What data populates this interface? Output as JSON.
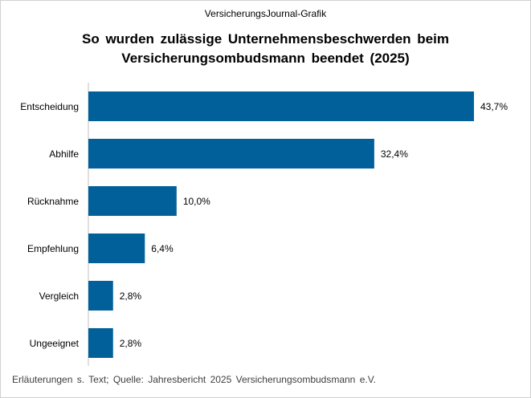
{
  "header": {
    "source_label": "VersicherungsJournal-Grafik",
    "title_line1": "So wurden zulässige Unternehmensbeschwerden beim",
    "title_line2": "Versicherungsombudsmann beendet (2025)"
  },
  "footer": {
    "note": "Erläuterungen s. Text; Quelle: Jahresbericht 2025 Versicherungsombudsmann e.V."
  },
  "chart_data": {
    "type": "bar",
    "orientation": "horizontal",
    "title": "So wurden zulässige Unternehmensbeschwerden beim Versicherungsombudsmann beendet (2025)",
    "categories": [
      "Entscheidung",
      "Abhilfe",
      "Rücknahme",
      "Empfehlung",
      "Vergleich",
      "Ungeeignet"
    ],
    "values": [
      43.7,
      32.4,
      10.0,
      6.4,
      2.8,
      2.8
    ],
    "value_labels": [
      "43,7%",
      "32,4%",
      "10,0%",
      "6,4%",
      "2,8%",
      "2,8%"
    ],
    "xlim": [
      0,
      43.7
    ],
    "grid": false,
    "legend": "none",
    "bar_color": "#01609a"
  }
}
